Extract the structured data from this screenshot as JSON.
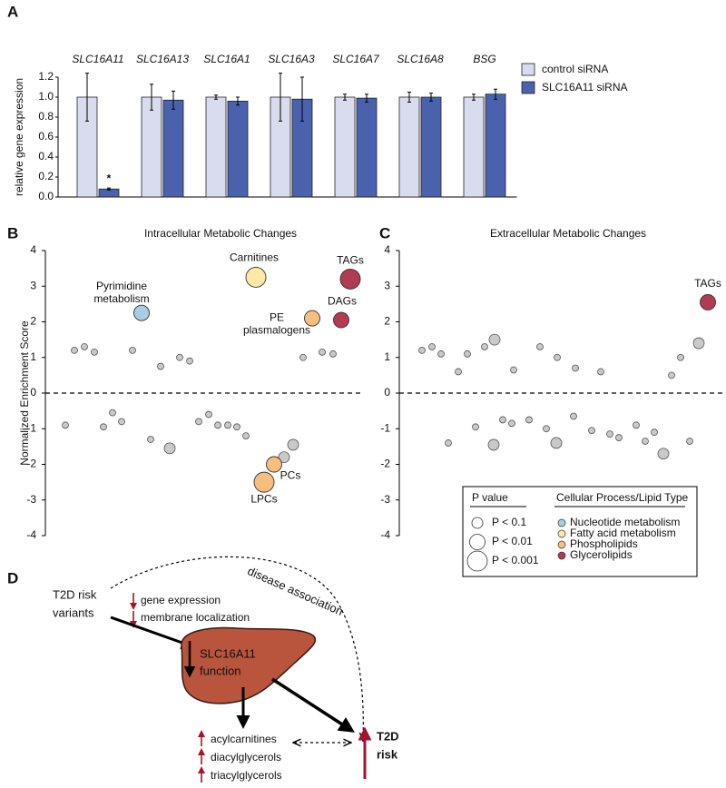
{
  "chart_data": [
    {
      "type": "bar",
      "label": "A",
      "ylabel": "relative gene expression",
      "categories": [
        "SLC16A11",
        "SLC16A13",
        "SLC16A1",
        "SLC16A3",
        "SLC16A7",
        "SLC16A8",
        "BSG"
      ],
      "series": [
        {
          "name": "control siRNA",
          "color": "#d8dcee",
          "values": [
            1,
            1,
            1,
            1,
            1,
            1,
            1
          ],
          "errors": [
            0.24,
            0.13,
            0.02,
            0.24,
            0.03,
            0.05,
            0.03
          ]
        },
        {
          "name": "SLC16A11 siRNA",
          "color": "#4a62ae",
          "values": [
            0.08,
            0.97,
            0.96,
            0.98,
            0.99,
            1.0,
            1.03
          ],
          "errors": [
            0.01,
            0.09,
            0.04,
            0.22,
            0.04,
            0.04,
            0.05
          ]
        }
      ],
      "annotation": "*",
      "ylim": [
        0,
        1.2
      ],
      "yticks": [
        {
          "value": 0,
          "label": "0.0"
        },
        0.2,
        0.4,
        0.6,
        0.8,
        {
          "value": 1,
          "label": "1.0"
        },
        1.2
      ]
    },
    {
      "type": "scatter",
      "label": "B",
      "title": "Intracellular Metabolic Changes",
      "ylabel": "Normalized Enrichment Score",
      "ylim": [
        -4,
        4
      ],
      "yticks": [
        -4,
        -3,
        -2,
        -1,
        0,
        1,
        2,
        3,
        4
      ],
      "series": [
        {
          "color": "#c9c9c9",
          "x": [
            2.2,
            3.3,
            4.4,
            8.6,
            11.7,
            13.8,
            14.9,
            27.4,
            29.5,
            30.7,
            1.2,
            5.4,
            6.4,
            7.4,
            10.6,
            15.9,
            17,
            18,
            19.1,
            20.1,
            21.1
          ],
          "values": [
            1.2,
            1.3,
            1.15,
            1.2,
            0.75,
            1.0,
            0.9,
            1.0,
            1.15,
            1.1,
            -0.9,
            -0.95,
            -0.55,
            -0.8,
            -1.3,
            -0.8,
            -0.6,
            -0.9,
            -0.9,
            -0.95,
            -1.2
          ]
        },
        {
          "color": "#c9c9c9",
          "p_value": 0.1,
          "x": [
            12.7,
            25.3,
            26.3
          ],
          "values": [
            -1.55,
            -1.8,
            -1.45
          ]
        }
      ],
      "highlights": [
        {
          "label": [
            "Pyrimidine",
            "metabolism"
          ],
          "x": 9.6,
          "value": 2.25,
          "p_value": 0.01,
          "color": "#a9cde4"
        },
        {
          "label": [
            "Carnitines"
          ],
          "x": 22.2,
          "value": 3.25,
          "p_value": 0.001,
          "color": "#fbe9a6"
        },
        {
          "label": [
            "TAGs"
          ],
          "x": 32.6,
          "value": 3.2,
          "p_value": 0.001,
          "color": "#b23a52"
        },
        {
          "label": [
            "PE",
            "plasmalogens"
          ],
          "x": 28.4,
          "value": 2.1,
          "p_value": 0.01,
          "color": "#f6bf7f"
        },
        {
          "label": [
            "DAGs"
          ],
          "x": 31.6,
          "value": 2.05,
          "p_value": 0.01,
          "color": "#b23a52"
        },
        {
          "label": [
            "PCs"
          ],
          "x": 24.2,
          "value": -2.0,
          "p_value": 0.01,
          "color": "#f6bf7f"
        },
        {
          "label": [
            "LPCs"
          ],
          "x": 23.1,
          "value": -2.5,
          "p_value": 0.001,
          "color": "#f6bf7f"
        }
      ]
    },
    {
      "type": "scatter",
      "label": "C",
      "title": "Extracellular Metabolic Changes",
      "ylim": [
        -4,
        4
      ],
      "yticks": [
        -4,
        -3,
        -2,
        -1,
        0,
        1,
        2,
        3,
        4
      ],
      "series": [
        {
          "color": "#c9c9c9",
          "x": [
            1.5,
            2.6,
            3.6,
            5.5,
            6.5,
            8.4,
            11.6,
            14.5,
            16.4,
            18.4,
            21.2,
            29,
            30,
            4.4,
            7.4,
            10.4,
            11.4,
            13.3,
            15.2,
            18.2,
            20.2,
            22.2,
            23.2,
            25.1,
            26.1,
            27.1,
            31
          ],
          "values": [
            1.2,
            1.3,
            1.1,
            0.6,
            1.1,
            1.3,
            0.65,
            1.3,
            1.0,
            0.7,
            0.6,
            0.5,
            1.0,
            -1.4,
            -0.95,
            -0.75,
            -0.85,
            -0.75,
            -1.0,
            -0.65,
            -1.05,
            -1.15,
            -1.25,
            -0.9,
            -1.35,
            -1.1,
            -1.35
          ]
        },
        {
          "color": "#c9c9c9",
          "p_value": 0.1,
          "x": [
            9.5,
            32,
            9.4,
            16.3,
            28.1
          ],
          "values": [
            1.5,
            1.4,
            -1.45,
            -1.4,
            -1.7
          ]
        }
      ],
      "highlights": [
        {
          "label": [
            "TAGs"
          ],
          "x": 33,
          "value": 2.55,
          "p_value": 0.01,
          "color": "#b23a52"
        }
      ]
    }
  ],
  "enrichment_legend": {
    "p_title": "P value",
    "p_values": [
      {
        "value": 0.1,
        "label": "P < 0.1"
      },
      {
        "value": 0.01,
        "label": "P < 0.01"
      },
      {
        "value": 0.001,
        "label": "P < 0.001"
      }
    ],
    "group_title": "Cellular Process/Lipid Type",
    "groups": [
      {
        "name": "Nucleotide metabolism",
        "color": "#a9cde4"
      },
      {
        "name": "Fatty acid metabolism",
        "color": "#fbe9a6"
      },
      {
        "name": "Phospholipids",
        "color": "#f6bf7f"
      },
      {
        "name": "Glycerolipids",
        "color": "#b23a52"
      }
    ]
  },
  "diagram": {
    "label": "D",
    "variants": [
      "T2D risk",
      "variants"
    ],
    "effects": [
      "gene expression",
      "membrane localization"
    ],
    "association": "disease association",
    "function": [
      "SLC16A11",
      "function"
    ],
    "metabolites": [
      "acylcarnitines",
      "diacylglycerols",
      "triacylglycerols"
    ],
    "outcome": [
      "T2D",
      "risk"
    ]
  }
}
